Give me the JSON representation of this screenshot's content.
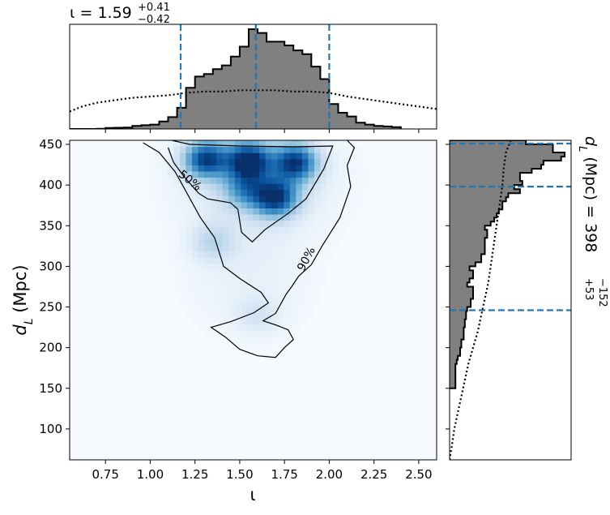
{
  "chart_data": {
    "type": "corner",
    "panels": [
      {
        "name": "iota-marginal",
        "type": "histogram",
        "title_value": "1.59",
        "title_plus": "+0.41",
        "title_minus": "−0.42",
        "x_range": [
          0.55,
          2.6
        ],
        "bin_edges": [
          0.55,
          0.6,
          0.65,
          0.7,
          0.75,
          0.8,
          0.85,
          0.9,
          0.95,
          1.0,
          1.05,
          1.1,
          1.15,
          1.2,
          1.25,
          1.3,
          1.35,
          1.4,
          1.45,
          1.5,
          1.55,
          1.6,
          1.65,
          1.7,
          1.75,
          1.8,
          1.85,
          1.9,
          1.95,
          2.0,
          2.05,
          2.1,
          2.15,
          2.2,
          2.25,
          2.3,
          2.35,
          2.4
        ],
        "posterior_counts": [
          0,
          0,
          0,
          0.2,
          0.8,
          1.0,
          1.2,
          2.5,
          3.0,
          3.5,
          6.0,
          9.5,
          17,
          33,
          42,
          44,
          48,
          51,
          58,
          66,
          80,
          77,
          70,
          70,
          67,
          63,
          60,
          50,
          40,
          20,
          13,
          10,
          5,
          3.5,
          2.5,
          2,
          1.5
        ],
        "prior_dotted": {
          "x": [
            0.55,
            0.62,
            0.7,
            0.8,
            0.9,
            1.0,
            1.1,
            1.15,
            1.2,
            1.3,
            1.4,
            1.5,
            1.6,
            1.7,
            1.8,
            1.9,
            2.0,
            2.1,
            2.2,
            2.3,
            2.4,
            2.5,
            2.6
          ],
          "y": [
            14,
            18,
            21,
            23,
            25,
            26,
            27,
            28,
            29,
            30,
            30,
            31,
            31,
            31,
            30,
            30,
            29,
            26,
            24,
            22,
            20,
            18,
            16
          ]
        },
        "quantile_lines": [
          1.17,
          1.59,
          2.0
        ]
      },
      {
        "name": "dL-vs-iota-joint",
        "type": "density_2d",
        "xlabel": "ι",
        "ylabel": "d",
        "ylabel_sub": "L",
        "ylabel_unit": " (Mpc)",
        "x_range": [
          0.55,
          2.6
        ],
        "y_range": [
          62,
          455
        ],
        "x_ticks": [
          "0.75",
          "1.00",
          "1.25",
          "1.50",
          "1.75",
          "2.00",
          "2.25",
          "2.50"
        ],
        "x_tick_values": [
          0.75,
          1.0,
          1.25,
          1.5,
          1.75,
          2.0,
          2.25,
          2.5
        ],
        "y_ticks": [
          "100",
          "150",
          "200",
          "250",
          "300",
          "350",
          "400",
          "450"
        ],
        "y_tick_values": [
          100,
          150,
          200,
          250,
          300,
          350,
          400,
          450
        ],
        "density_peaks": [
          {
            "x": 1.31,
            "y": 432,
            "amp": 0.9
          },
          {
            "x": 1.55,
            "y": 430,
            "amp": 1.0
          },
          {
            "x": 1.81,
            "y": 428,
            "amp": 0.9
          },
          {
            "x": 1.7,
            "y": 385,
            "amp": 0.9
          },
          {
            "x": 1.53,
            "y": 395,
            "amp": 0.45
          },
          {
            "x": 1.35,
            "y": 330,
            "amp": 0.25
          },
          {
            "x": 1.6,
            "y": 240,
            "amp": 0.15
          }
        ],
        "contour_labels": [
          "50%",
          "90%"
        ],
        "contour_50": [
          [
            1.12,
            455
          ],
          [
            1.22,
            450
          ],
          [
            1.5,
            448
          ],
          [
            1.8,
            447
          ],
          [
            2.02,
            448
          ],
          [
            1.97,
            420
          ],
          [
            1.87,
            383
          ],
          [
            1.77,
            365
          ],
          [
            1.64,
            345
          ],
          [
            1.57,
            330
          ],
          [
            1.51,
            342
          ],
          [
            1.49,
            370
          ],
          [
            1.45,
            378
          ],
          [
            1.4,
            380
          ],
          [
            1.32,
            383
          ],
          [
            1.27,
            390
          ],
          [
            1.19,
            410
          ],
          [
            1.13,
            428
          ],
          [
            1.1,
            446
          ]
        ],
        "contour_90": [
          [
            0.96,
            452
          ],
          [
            1.05,
            440
          ],
          [
            1.14,
            416
          ],
          [
            1.23,
            380
          ],
          [
            1.28,
            360
          ],
          [
            1.36,
            335
          ],
          [
            1.41,
            300
          ],
          [
            1.5,
            285
          ],
          [
            1.62,
            268
          ],
          [
            1.66,
            255
          ],
          [
            1.58,
            243
          ],
          [
            1.45,
            232
          ],
          [
            1.34,
            225
          ],
          [
            1.42,
            213
          ],
          [
            1.5,
            198
          ],
          [
            1.6,
            190
          ],
          [
            1.7,
            188
          ],
          [
            1.75,
            200
          ],
          [
            1.8,
            210
          ],
          [
            1.77,
            222
          ],
          [
            1.7,
            228
          ],
          [
            1.63,
            233
          ],
          [
            1.7,
            242
          ],
          [
            1.76,
            266
          ],
          [
            1.79,
            275
          ],
          [
            1.83,
            288
          ],
          [
            1.9,
            302
          ],
          [
            1.96,
            325
          ],
          [
            2.06,
            360
          ],
          [
            2.12,
            398
          ],
          [
            2.1,
            424
          ],
          [
            2.14,
            446
          ],
          [
            2.1,
            455
          ]
        ]
      },
      {
        "name": "dL-marginal",
        "type": "histogram",
        "orientation": "horizontal",
        "label_symbol": "d",
        "label_sub": "L",
        "label_unit": " (Mpc) = 398",
        "label_plus": "+53",
        "label_minus": "−152",
        "y_range": [
          62,
          455
        ],
        "bin_edges": [
          150,
          155,
          160,
          165,
          170,
          175,
          180,
          185,
          190,
          195,
          200,
          205,
          210,
          215,
          220,
          225,
          230,
          235,
          240,
          245,
          250,
          255,
          260,
          265,
          270,
          275,
          280,
          285,
          290,
          295,
          300,
          305,
          310,
          315,
          320,
          325,
          330,
          335,
          340,
          345,
          350,
          355,
          360,
          365,
          370,
          375,
          380,
          385,
          390,
          395,
          400,
          405,
          410,
          415,
          420,
          425,
          430,
          435,
          440,
          445,
          450,
          455
        ],
        "posterior_counts": [
          0.05,
          0.05,
          0.05,
          0.05,
          0.05,
          0.05,
          0.06,
          0.07,
          0.09,
          0.09,
          0.1,
          0.1,
          0.12,
          0.12,
          0.12,
          0.13,
          0.13,
          0.14,
          0.14,
          0.15,
          0.18,
          0.18,
          0.2,
          0.2,
          0.2,
          0.15,
          0.17,
          0.2,
          0.2,
          0.17,
          0.22,
          0.27,
          0.27,
          0.3,
          0.3,
          0.3,
          0.3,
          0.32,
          0.32,
          0.3,
          0.35,
          0.38,
          0.4,
          0.42,
          0.45,
          0.45,
          0.48,
          0.5,
          0.6,
          0.55,
          0.62,
          0.6,
          0.6,
          0.7,
          0.78,
          0.8,
          0.95,
          0.98,
          0.88,
          0.88,
          0.65
        ],
        "prior_dotted": {
          "y": [
            62,
            80,
            100,
            120,
            140,
            160,
            180,
            200,
            220,
            240,
            260,
            280,
            300,
            320,
            340,
            360,
            380,
            400,
            420,
            440,
            455
          ],
          "x": [
            0.0,
            0.02,
            0.04,
            0.07,
            0.1,
            0.13,
            0.16,
            0.2,
            0.24,
            0.27,
            0.3,
            0.33,
            0.35,
            0.37,
            0.39,
            0.41,
            0.43,
            0.45,
            0.46,
            0.48,
            0.52
          ]
        },
        "quantile_lines": [
          246,
          398,
          451
        ]
      }
    ]
  }
}
